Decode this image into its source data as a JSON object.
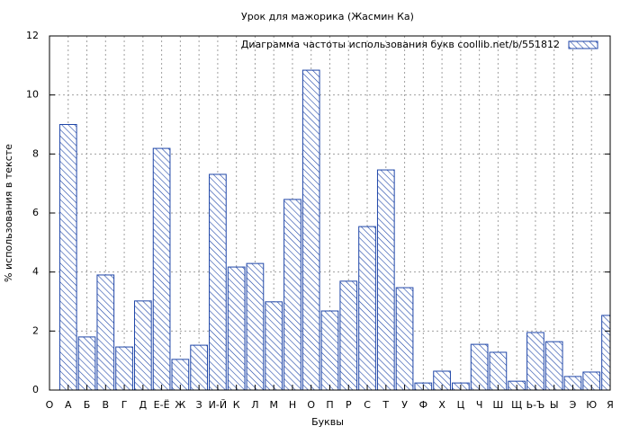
{
  "chart_data": {
    "type": "bar",
    "title": "Урок для мажорика (Жасмин Ка)",
    "x_label": "Буквы",
    "y_label": "% использования в тексте",
    "categories": [
      "О",
      "А",
      "Б",
      "В",
      "Г",
      "Д",
      "Е-Ё",
      "Ж",
      "З",
      "И-Й",
      "К",
      "Л",
      "М",
      "Н",
      "О",
      "П",
      "Р",
      "С",
      "Т",
      "У",
      "Ф",
      "Х",
      "Ц",
      "Ч",
      "Ш",
      "Щ",
      "Ь-Ъ",
      "Ы",
      "Э",
      "Ю",
      "Я"
    ],
    "series": [
      {
        "name": "Диаграмма частоты использования букв  coollib.net/b/551812",
        "color": "#1f46a8",
        "values": [
          null,
          9.0,
          1.8,
          3.9,
          1.46,
          3.02,
          8.19,
          1.04,
          1.52,
          7.31,
          4.17,
          4.29,
          2.99,
          6.46,
          10.84,
          2.68,
          3.69,
          5.54,
          7.46,
          3.47,
          0.24,
          0.64,
          0.24,
          1.55,
          1.28,
          0.3,
          1.95,
          1.64,
          0.46,
          0.61,
          2.53
        ]
      }
    ],
    "xlim": [
      0,
      30
    ],
    "ylim": [
      0,
      12
    ],
    "yticks": [
      0,
      2,
      4,
      6,
      8,
      10,
      12
    ],
    "grid": true,
    "legend": "top-right"
  }
}
